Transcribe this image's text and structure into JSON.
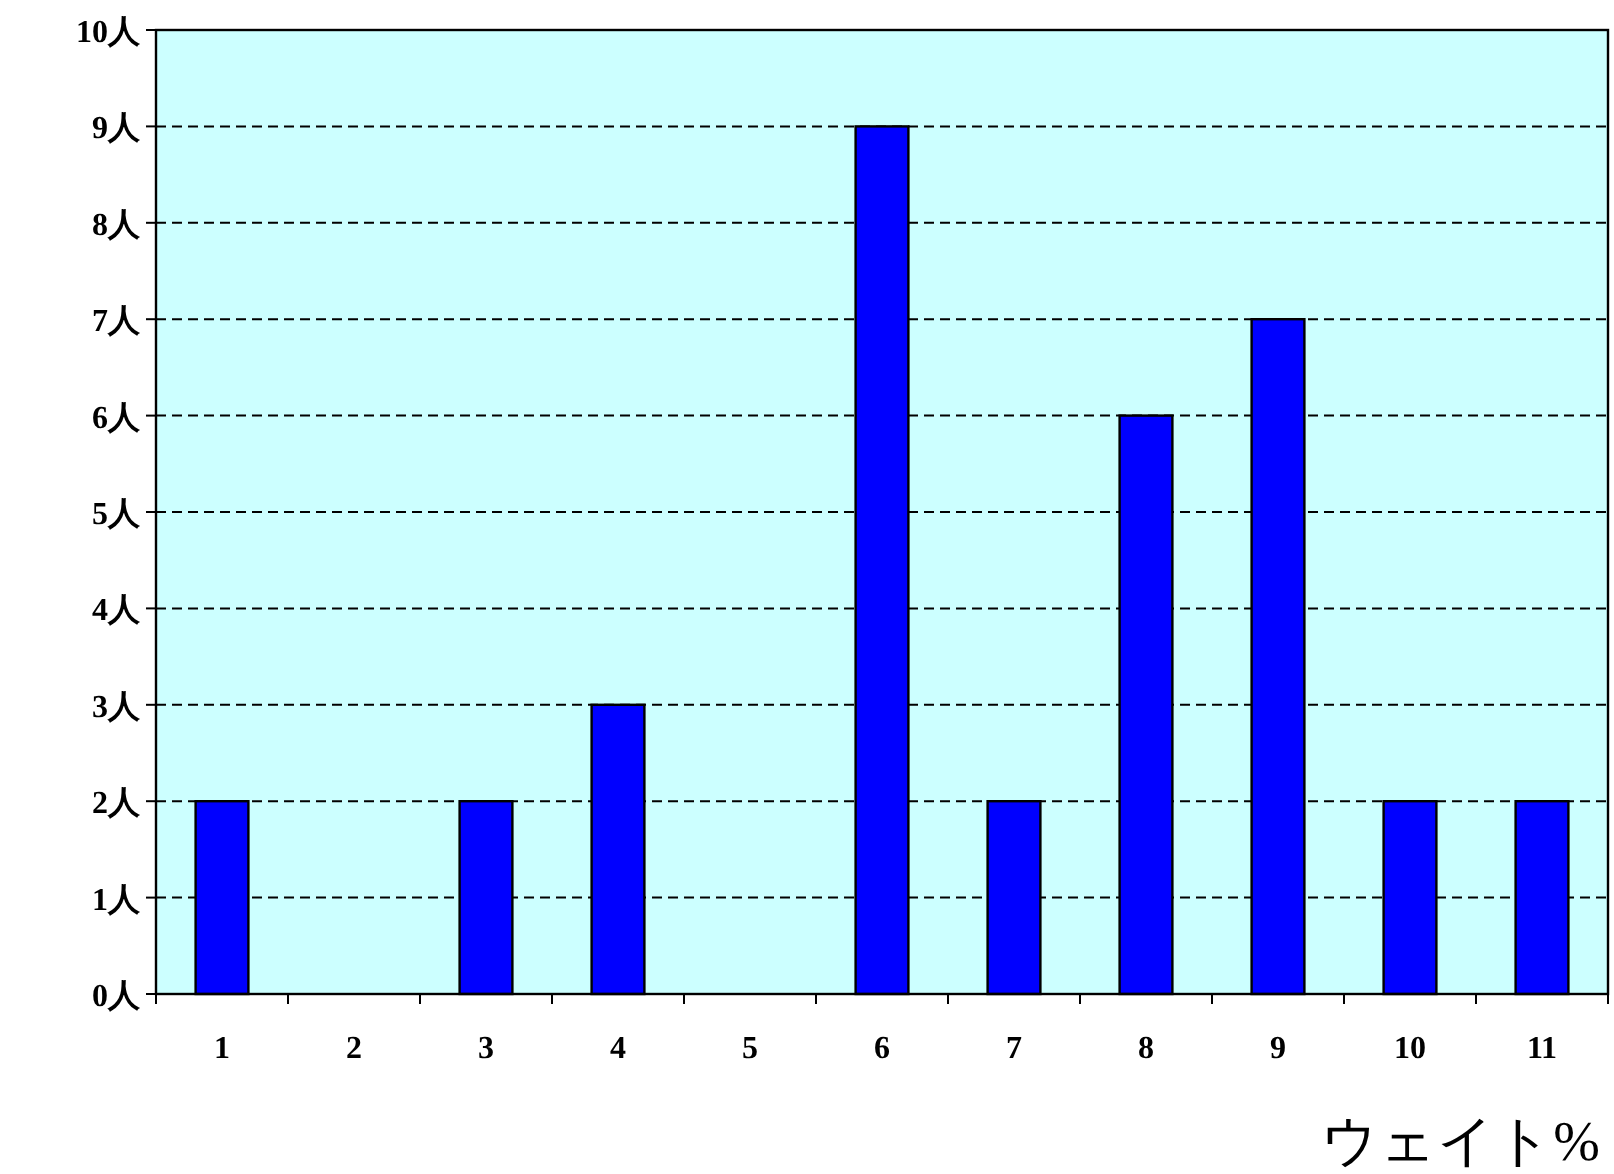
{
  "chart_data": {
    "type": "bar",
    "xlabel": "ウェイト%",
    "categories": [
      "1",
      "2",
      "3",
      "4",
      "5",
      "6",
      "7",
      "8",
      "9",
      "10",
      "11"
    ],
    "values": [
      2,
      0,
      2,
      3,
      0,
      9,
      2,
      6,
      7,
      2,
      2
    ],
    "color": "#0000ff",
    "ylim": [
      0,
      10
    ],
    "yticks": [
      {
        "value": 0,
        "label": "0人"
      },
      {
        "value": 1,
        "label": "1人"
      },
      {
        "value": 2,
        "label": "2人"
      },
      {
        "value": 3,
        "label": "3人"
      },
      {
        "value": 4,
        "label": "4人"
      },
      {
        "value": 5,
        "label": "5人"
      },
      {
        "value": 6,
        "label": "6人"
      },
      {
        "value": 7,
        "label": "7人"
      },
      {
        "value": 8,
        "label": "8人"
      },
      {
        "value": 9,
        "label": "9人"
      },
      {
        "value": 10,
        "label": "10人"
      }
    ],
    "grid": "y"
  }
}
